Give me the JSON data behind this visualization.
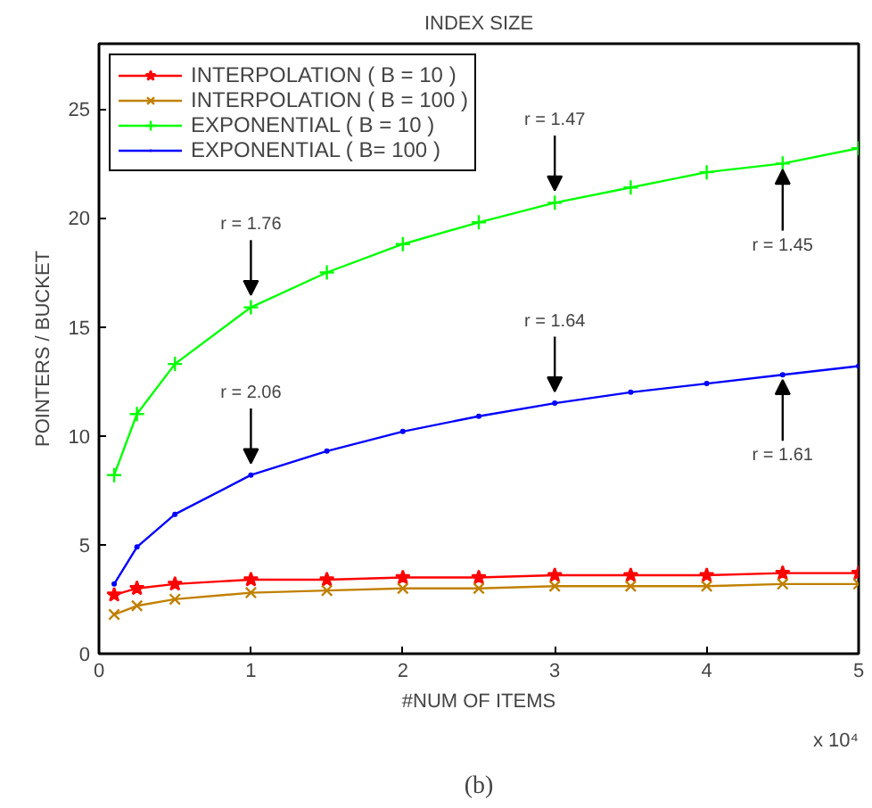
{
  "chart_data": {
    "type": "line",
    "title": "INDEX SIZE",
    "xlabel": "#NUM OF ITEMS",
    "ylabel": "POINTERS / BUCKET",
    "x": [
      0.1,
      0.25,
      0.5,
      1,
      1.5,
      2,
      2.5,
      3,
      3.5,
      4,
      4.5,
      5
    ],
    "series": [
      {
        "name": "INTERPOLATION ( B = 10 )",
        "color": "#ff0000",
        "marker": "star",
        "values": [
          2.7,
          3.0,
          3.2,
          3.4,
          3.4,
          3.5,
          3.5,
          3.6,
          3.6,
          3.6,
          3.7,
          3.7
        ]
      },
      {
        "name": "INTERPOLATION ( B = 100 )",
        "color": "#c08000",
        "marker": "x",
        "values": [
          1.8,
          2.2,
          2.5,
          2.8,
          2.9,
          3.0,
          3.0,
          3.1,
          3.1,
          3.1,
          3.2,
          3.2
        ]
      },
      {
        "name": "EXPONENTIAL ( B = 10 )",
        "color": "#00ff00",
        "marker": "cross",
        "values": [
          8.2,
          11.0,
          13.3,
          15.9,
          17.5,
          18.8,
          19.8,
          20.7,
          21.4,
          22.1,
          22.5,
          23.2
        ]
      },
      {
        "name": "EXPONENTIAL ( B= 100 )",
        "color": "#0000ff",
        "marker": "dot",
        "values": [
          3.2,
          4.9,
          6.4,
          8.2,
          9.3,
          10.2,
          10.9,
          11.5,
          12.0,
          12.4,
          12.8,
          13.2
        ]
      }
    ],
    "xlim": [
      0,
      5
    ],
    "xticks": [
      0,
      1,
      2,
      3,
      4,
      5
    ],
    "ylim": [
      0,
      28
    ],
    "yticks": [
      0,
      5,
      10,
      15,
      20,
      25
    ],
    "grid": false,
    "legend": "top left",
    "annotations": [
      {
        "text": "r = 1.76",
        "x": 1,
        "y": 15.9
      },
      {
        "text": "r = 1.47",
        "x": 3,
        "y": 20.7
      },
      {
        "text": "r = 1.45",
        "x": 4.5,
        "y": 22.5
      },
      {
        "text": "r = 2.06",
        "x": 1,
        "y": 8.18
      },
      {
        "text": "r = 1.64",
        "x": 3,
        "y": 11.47
      },
      {
        "text": "r = 1.61",
        "x": 4.5,
        "y": 12.85
      },
      "x 10⁴",
      "(b)"
    ]
  }
}
